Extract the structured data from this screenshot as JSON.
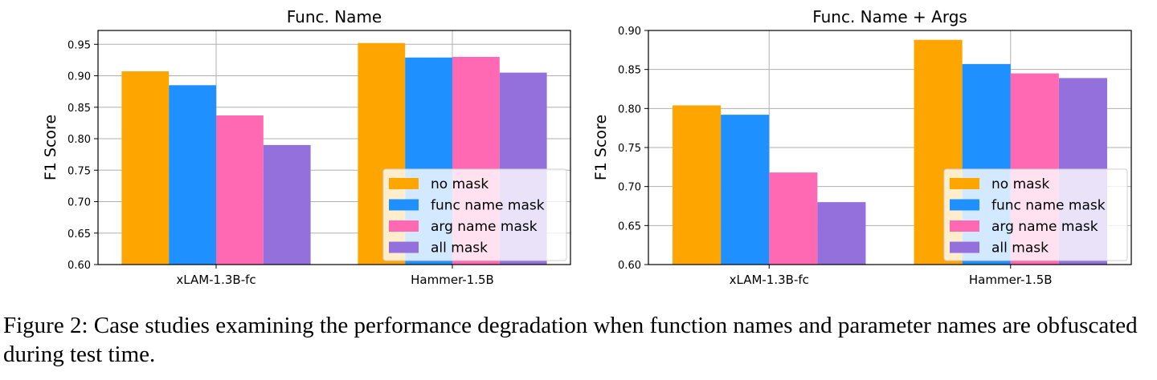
{
  "chart_data": [
    {
      "type": "bar",
      "title": "Func. Name",
      "xlabel": "",
      "ylabel": "F1 Score",
      "categories": [
        "xLAM-1.3B-fc",
        "Hammer-1.5B"
      ],
      "ylim": [
        0.6,
        0.972
      ],
      "yticks": [
        "0.60",
        "0.65",
        "0.70",
        "0.75",
        "0.80",
        "0.85",
        "0.90",
        "0.95"
      ],
      "grid": true,
      "legend": "lower right",
      "series": [
        {
          "name": "no mask",
          "color": "#FFA500",
          "values": [
            0.907,
            0.952
          ]
        },
        {
          "name": "func name mask",
          "color": "#1E90FF",
          "values": [
            0.885,
            0.929
          ]
        },
        {
          "name": "arg name mask",
          "color": "#FF69B4",
          "values": [
            0.837,
            0.93
          ]
        },
        {
          "name": "all mask",
          "color": "#9370DB",
          "values": [
            0.79,
            0.905
          ]
        }
      ]
    },
    {
      "type": "bar",
      "title": "Func. Name + Args",
      "xlabel": "",
      "ylabel": "F1 Score",
      "categories": [
        "xLAM-1.3B-fc",
        "Hammer-1.5B"
      ],
      "ylim": [
        0.6,
        0.9
      ],
      "yticks": [
        "0.60",
        "0.65",
        "0.70",
        "0.75",
        "0.80",
        "0.85",
        "0.90"
      ],
      "grid": true,
      "legend": "lower right",
      "series": [
        {
          "name": "no mask",
          "color": "#FFA500",
          "values": [
            0.804,
            0.888
          ]
        },
        {
          "name": "func name mask",
          "color": "#1E90FF",
          "values": [
            0.792,
            0.857
          ]
        },
        {
          "name": "arg name mask",
          "color": "#FF69B4",
          "values": [
            0.718,
            0.845
          ]
        },
        {
          "name": "all mask",
          "color": "#9370DB",
          "values": [
            0.68,
            0.839
          ]
        }
      ]
    }
  ],
  "caption": "Figure 2: Case studies examining the performance degradation when function names and parameter names are obfuscated during test time."
}
